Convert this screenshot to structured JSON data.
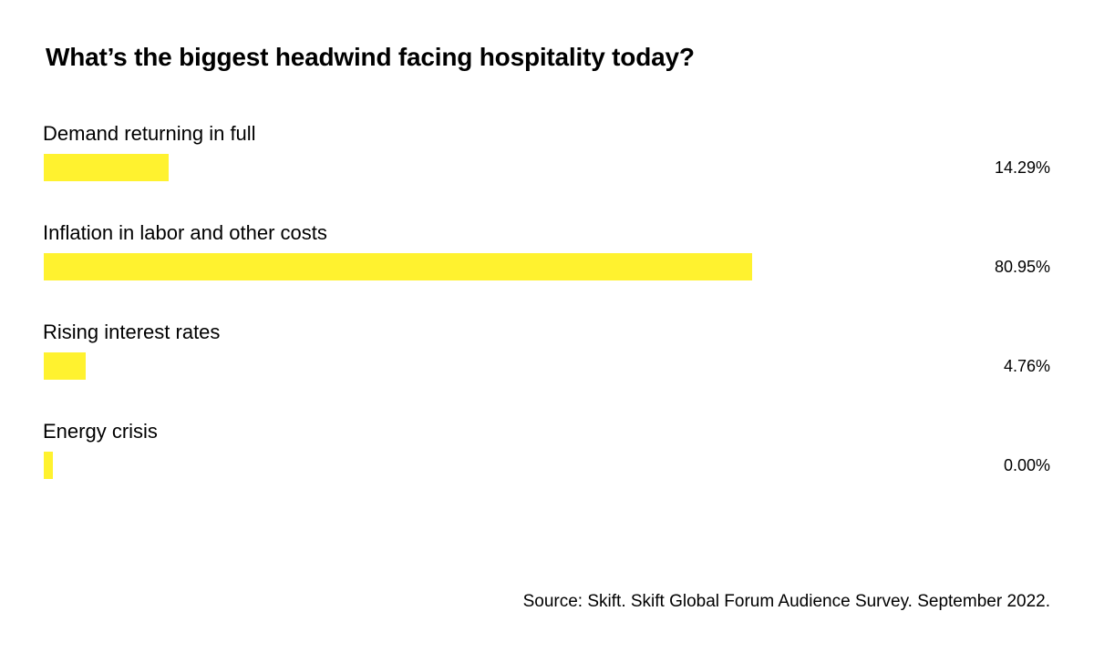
{
  "chart_data": {
    "type": "bar",
    "orientation": "horizontal",
    "title": "What’s the biggest headwind facing hospitality today?",
    "categories": [
      "Demand returning in full",
      "Inflation in labor and other costs",
      "Rising interest rates",
      "Energy crisis"
    ],
    "values": [
      14.29,
      80.95,
      4.76,
      0.0
    ],
    "value_labels": [
      "14.29%",
      "80.95%",
      "4.76%",
      "0.00%"
    ],
    "unit": "%",
    "xlim": [
      0,
      100
    ],
    "grid": false,
    "legend": "none",
    "bar_color": "#fff22f",
    "source": "Source: Skift. Skift Global Forum Audience Survey. September 2022."
  }
}
